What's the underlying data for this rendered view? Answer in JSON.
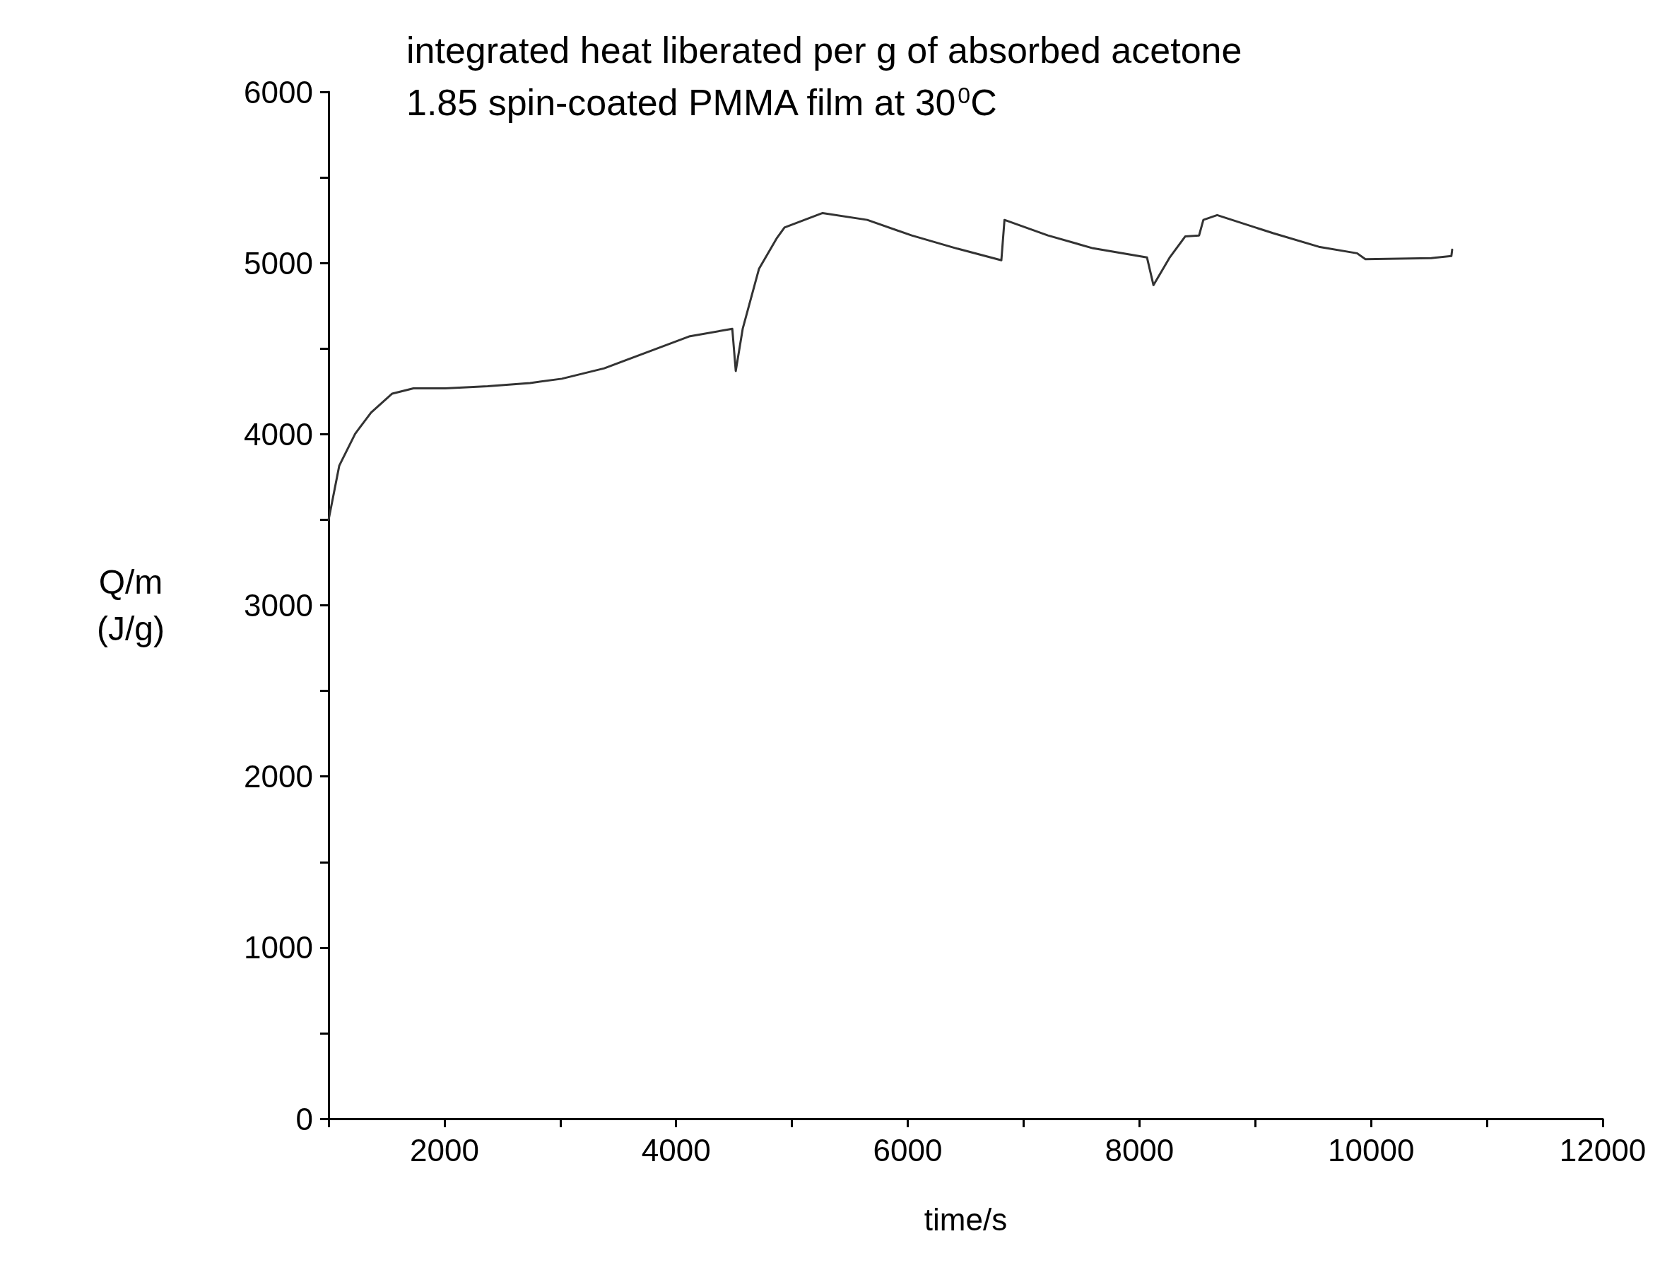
{
  "chart_data": {
    "type": "line",
    "title": "integrated heat liberated per g of absorbed acetone",
    "subtitle": "1.85 spin-coated PMMA film at 30$^{0}$C",
    "xlabel": "time/s",
    "ylabel": "Q/m\n(J/g)",
    "xlim": [
      1000,
      12000
    ],
    "xticks": [
      {
        "value": 1000,
        "label": null
      },
      2000,
      {
        "value": 3000,
        "label": null
      },
      4000,
      {
        "value": 5000,
        "label": null
      },
      6000,
      {
        "value": 7000,
        "label": null
      },
      8000,
      {
        "value": 9000,
        "label": null
      },
      10000,
      {
        "value": 11000,
        "label": null
      },
      12000
    ],
    "ylim": [
      0,
      6000
    ],
    "yticks": [
      0,
      {
        "value": 500,
        "label": null
      },
      1000,
      {
        "value": 1500,
        "label": null
      },
      2000,
      {
        "value": 2500,
        "label": null
      },
      3000,
      {
        "value": 3500,
        "label": null
      },
      4000,
      {
        "value": 4500,
        "label": null
      },
      5000,
      {
        "value": 5500,
        "label": null
      },
      6000
    ],
    "grid": false,
    "marker": "none",
    "line_style": "solid",
    "series": [
      {
        "color": "#333333",
        "x": [
          1000,
          1092,
          1229,
          1366,
          1549,
          1732,
          2007,
          2373,
          2739,
          3014,
          3380,
          3746,
          4112,
          4485,
          4515,
          4575,
          4716,
          4872,
          4936,
          5265,
          5650,
          6034,
          6428,
          6808,
          6835,
          7210,
          7600,
          8065,
          8121,
          8259,
          8396,
          8515,
          8552,
          8671,
          9156,
          9549,
          9879,
          9951,
          10519,
          10693,
          10700
        ],
        "values": [
          3500,
          3816,
          4002,
          4126,
          4237,
          4268,
          4268,
          4280,
          4299,
          4324,
          4385,
          4478,
          4571,
          4616,
          4369,
          4616,
          4967,
          5148,
          5208,
          5292,
          5252,
          5161,
          5084,
          5016,
          5252,
          5161,
          5086,
          5033,
          4871,
          5030,
          5156,
          5161,
          5252,
          5280,
          5174,
          5095,
          5057,
          5022,
          5029,
          5041,
          5078
        ]
      }
    ]
  }
}
